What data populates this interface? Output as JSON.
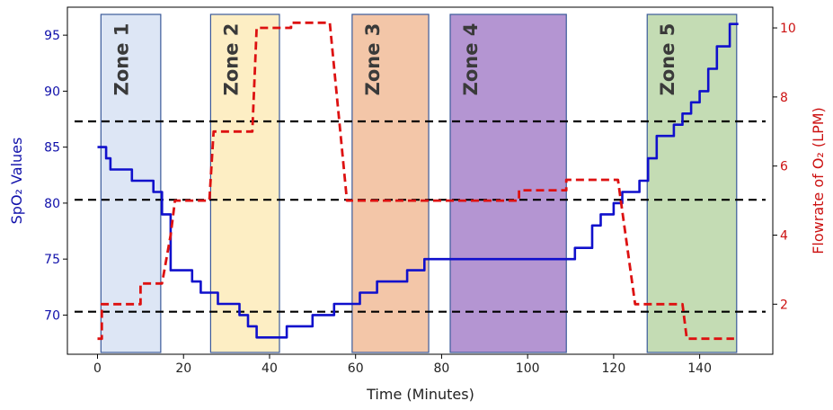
{
  "chart_data": {
    "type": "line",
    "title": "",
    "xlabel": "Time (Minutes)",
    "ylabel_left": "SpO₂ Values",
    "ylabel_right": "Flowrate of O₂ (LPM)",
    "xlim": [
      -7,
      157
    ],
    "ylim_left": [
      66.5,
      97.5
    ],
    "ylim_right": [
      0.55,
      10.6
    ],
    "x_ticks": [
      0,
      20,
      40,
      60,
      80,
      100,
      120,
      140
    ],
    "y_left_ticks": [
      70,
      75,
      80,
      85,
      90,
      95
    ],
    "y_right_ticks": [
      2,
      4,
      6,
      8,
      10
    ],
    "grid": false,
    "colors": {
      "spo2": "#1010cc",
      "flow": "#dd1111",
      "threshold": "#000000",
      "left_axis": "#1010aa",
      "right_axis": "#cc1111"
    },
    "zones": [
      {
        "label": "Zone 1",
        "x_start": 0.8,
        "x_end": 14.7,
        "fill": "#dde6f5",
        "text_color": "#444444"
      },
      {
        "label": "Zone 2",
        "x_start": 26.3,
        "x_end": 42.3,
        "fill": "#fdeec4",
        "text_color": "#444444"
      },
      {
        "label": "Zone 3",
        "x_start": 59.2,
        "x_end": 77,
        "fill": "#f3c6a8",
        "text_color": "#444444"
      },
      {
        "label": "Zone 4",
        "x_start": 82,
        "x_end": 109,
        "fill": "#b495d2",
        "text_color": "#444444"
      },
      {
        "label": "Zone 5",
        "x_start": 127.8,
        "x_end": 148.6,
        "fill": "#c4dcb4",
        "text_color": "#444444"
      }
    ],
    "thresholds_left": [
      87.3,
      80.3,
      70.3
    ],
    "series": [
      {
        "axis": "left",
        "x": [
          0,
          2,
          2,
          3,
          3,
          5,
          5,
          8,
          8,
          13,
          13,
          15,
          15,
          17,
          17,
          20,
          20,
          22,
          22,
          24,
          24,
          26,
          26,
          28,
          28,
          33,
          33,
          35,
          35,
          37,
          37,
          39,
          39,
          44,
          44,
          46,
          46,
          50,
          50,
          52,
          52,
          55,
          55,
          59,
          59,
          61,
          61,
          65,
          65,
          70,
          70,
          72,
          72,
          74,
          74,
          76,
          76,
          109,
          109,
          111,
          111,
          113,
          113,
          115,
          115,
          117,
          117,
          120,
          120,
          122,
          122,
          124,
          124,
          126,
          126,
          128,
          128,
          130,
          130,
          132,
          132,
          134,
          134,
          136,
          136,
          138,
          138,
          140,
          140,
          142,
          142,
          144,
          144,
          147,
          147,
          149
        ],
        "values": [
          85,
          85,
          84,
          84,
          83,
          83,
          83,
          83,
          82,
          82,
          81,
          81,
          79,
          79,
          74,
          74,
          74,
          74,
          73,
          73,
          72,
          72,
          72,
          72,
          71,
          71,
          70,
          70,
          69,
          69,
          68,
          68,
          68,
          68,
          69,
          69,
          69,
          69,
          70,
          70,
          70,
          70,
          71,
          71,
          71,
          71,
          72,
          72,
          73,
          73,
          73,
          73,
          74,
          74,
          74,
          74,
          75,
          75,
          75,
          75,
          76,
          76,
          76,
          76,
          78,
          78,
          79,
          79,
          80,
          80,
          81,
          81,
          81,
          81,
          82,
          82,
          84,
          84,
          86,
          86,
          86,
          86,
          87,
          87,
          88,
          88,
          89,
          89,
          90,
          90,
          92,
          92,
          94,
          94,
          96,
          96
        ]
      },
      {
        "axis": "right",
        "x": [
          0,
          1,
          1,
          10,
          10,
          15,
          15,
          17,
          18,
          26,
          27,
          33,
          34,
          36,
          37,
          43,
          43,
          45,
          45,
          54,
          58,
          59,
          59,
          98,
          98,
          106,
          107,
          109,
          109,
          110,
          110,
          121,
          125,
          126,
          126,
          136,
          137,
          148
        ],
        "values": [
          1,
          1,
          2,
          2,
          2.6,
          2.6,
          2.6,
          4,
          5,
          5,
          7,
          7,
          7,
          7,
          10,
          10,
          10,
          10,
          10.15,
          10.15,
          5,
          5,
          5,
          5,
          5.3,
          5.3,
          5.3,
          5.3,
          5.6,
          5.6,
          5.6,
          5.6,
          2,
          2,
          2,
          2,
          1,
          1
        ]
      }
    ]
  }
}
